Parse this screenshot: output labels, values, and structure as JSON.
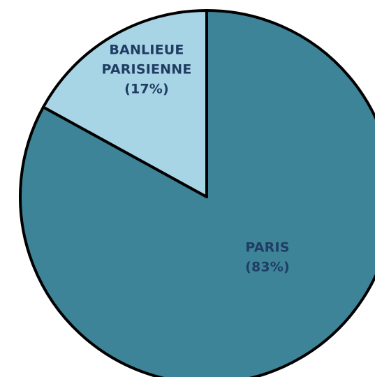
{
  "chart_data": {
    "type": "pie",
    "start_angle_deg": 90,
    "direction": "clockwise",
    "slices": [
      {
        "label_lines": [
          "PARIS",
          "(83%)"
        ],
        "value": 83,
        "color": "#3d8499",
        "label_color": "#1f3d63"
      },
      {
        "label_lines": [
          "BANLIEUE",
          "PARISIENNE",
          "(17%)"
        ],
        "value": 17,
        "color": "#a8d5e5",
        "label_color": "#1f3d63"
      }
    ],
    "stroke_color": "#000000"
  }
}
